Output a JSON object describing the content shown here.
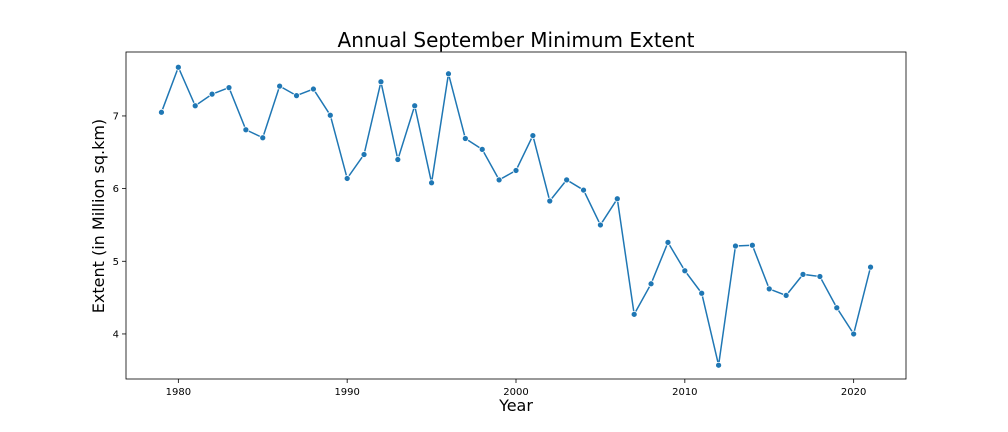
{
  "chart_data": {
    "type": "line",
    "title": "Annual September Minimum Extent",
    "xlabel": "Year",
    "ylabel": "Extent (in Million sq.km)",
    "xlim": [
      1976.9,
      2023.1
    ],
    "ylim": [
      3.38,
      7.88
    ],
    "xticks": [
      1980,
      1990,
      2000,
      2010,
      2020
    ],
    "yticks": [
      4,
      5,
      6,
      7
    ],
    "grid": false,
    "line_color": "#1f77b4",
    "marker": "circle",
    "x": [
      1979,
      1980,
      1981,
      1982,
      1983,
      1984,
      1985,
      1986,
      1987,
      1988,
      1989,
      1990,
      1991,
      1992,
      1993,
      1994,
      1995,
      1996,
      1997,
      1998,
      1999,
      2000,
      2001,
      2002,
      2003,
      2004,
      2005,
      2006,
      2007,
      2008,
      2009,
      2010,
      2011,
      2012,
      2013,
      2014,
      2015,
      2016,
      2017,
      2018,
      2019,
      2020,
      2021
    ],
    "values": [
      7.05,
      7.67,
      7.14,
      7.3,
      7.39,
      6.81,
      6.7,
      7.41,
      7.28,
      7.37,
      7.01,
      6.14,
      6.47,
      7.47,
      6.4,
      7.14,
      6.08,
      7.58,
      6.69,
      6.54,
      6.12,
      6.25,
      6.73,
      5.83,
      6.12,
      5.98,
      5.5,
      5.86,
      4.27,
      4.69,
      5.26,
      4.87,
      4.56,
      3.57,
      5.21,
      5.22,
      4.62,
      4.53,
      4.82,
      4.79,
      4.36,
      4.0,
      4.92
    ]
  }
}
